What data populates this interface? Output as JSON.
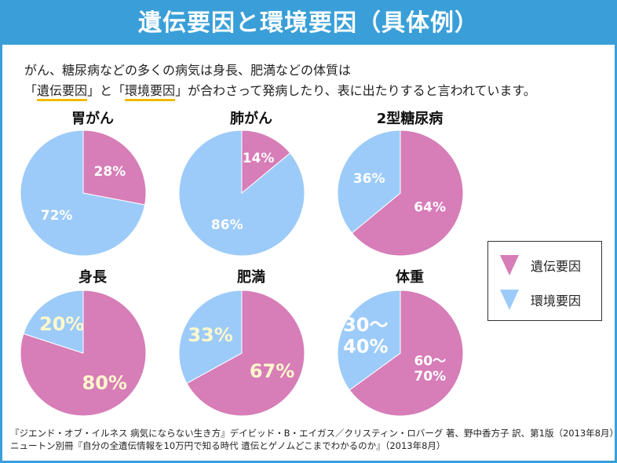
{
  "header": {
    "title": "遺伝要因と環境要因（具体例）"
  },
  "intro": {
    "line1": "がん、糖尿病などの多くの病気は身長、肥満などの体質は",
    "line2_pre": "「",
    "line2_h1": "遺伝要因",
    "line2_mid": "」と「",
    "line2_h2": "環境要因",
    "line2_post": "」が合わさって発病したり、表に出たりすると言われています。"
  },
  "legend": {
    "genetic": "遺伝要因",
    "environmental": "環境要因"
  },
  "colors": {
    "header_bg": "#3a9fd8",
    "genetic": "#d77db8",
    "environmental": "#9ccbf9",
    "underline": "#f2b800",
    "label_highlight": "#fff8cc"
  },
  "source": {
    "line1": "『ジエンド・オブ・イルネス 病気にならない生き方』デイビッド・B・エイガス／クリスティン・ロバーグ 著、野中香方子 訳、第1版（2013年8月）",
    "line2": "ニュートン別冊『自分の全遺伝情報を10万円で知る時代 遺伝とゲノムどこまでわかるのか』（2013年8月）"
  },
  "chart_data": [
    {
      "type": "pie",
      "title": "胃がん",
      "slices": [
        {
          "name": "遺伝要因",
          "value": 28,
          "label": "28%"
        },
        {
          "name": "環境要因",
          "value": 72,
          "label": "72%"
        }
      ]
    },
    {
      "type": "pie",
      "title": "肺がん",
      "slices": [
        {
          "name": "遺伝要因",
          "value": 14,
          "label": "14%"
        },
        {
          "name": "環境要因",
          "value": 86,
          "label": "86%"
        }
      ]
    },
    {
      "type": "pie",
      "title": "2型糖尿病",
      "slices": [
        {
          "name": "遺伝要因",
          "value": 64,
          "label": "64%"
        },
        {
          "name": "環境要因",
          "value": 36,
          "label": "36%"
        }
      ]
    },
    {
      "type": "pie",
      "title": "身長",
      "slices": [
        {
          "name": "遺伝要因",
          "value": 80,
          "label": "80%"
        },
        {
          "name": "環境要因",
          "value": 20,
          "label": "20%"
        }
      ]
    },
    {
      "type": "pie",
      "title": "肥満",
      "slices": [
        {
          "name": "遺伝要因",
          "value": 67,
          "label": "67%"
        },
        {
          "name": "環境要因",
          "value": 33,
          "label": "33%"
        }
      ]
    },
    {
      "type": "pie",
      "title": "体重",
      "slices": [
        {
          "name": "遺伝要因",
          "value": 65,
          "label": "60～\n70%"
        },
        {
          "name": "環境要因",
          "value": 35,
          "label": "30～\n40%"
        }
      ]
    }
  ]
}
